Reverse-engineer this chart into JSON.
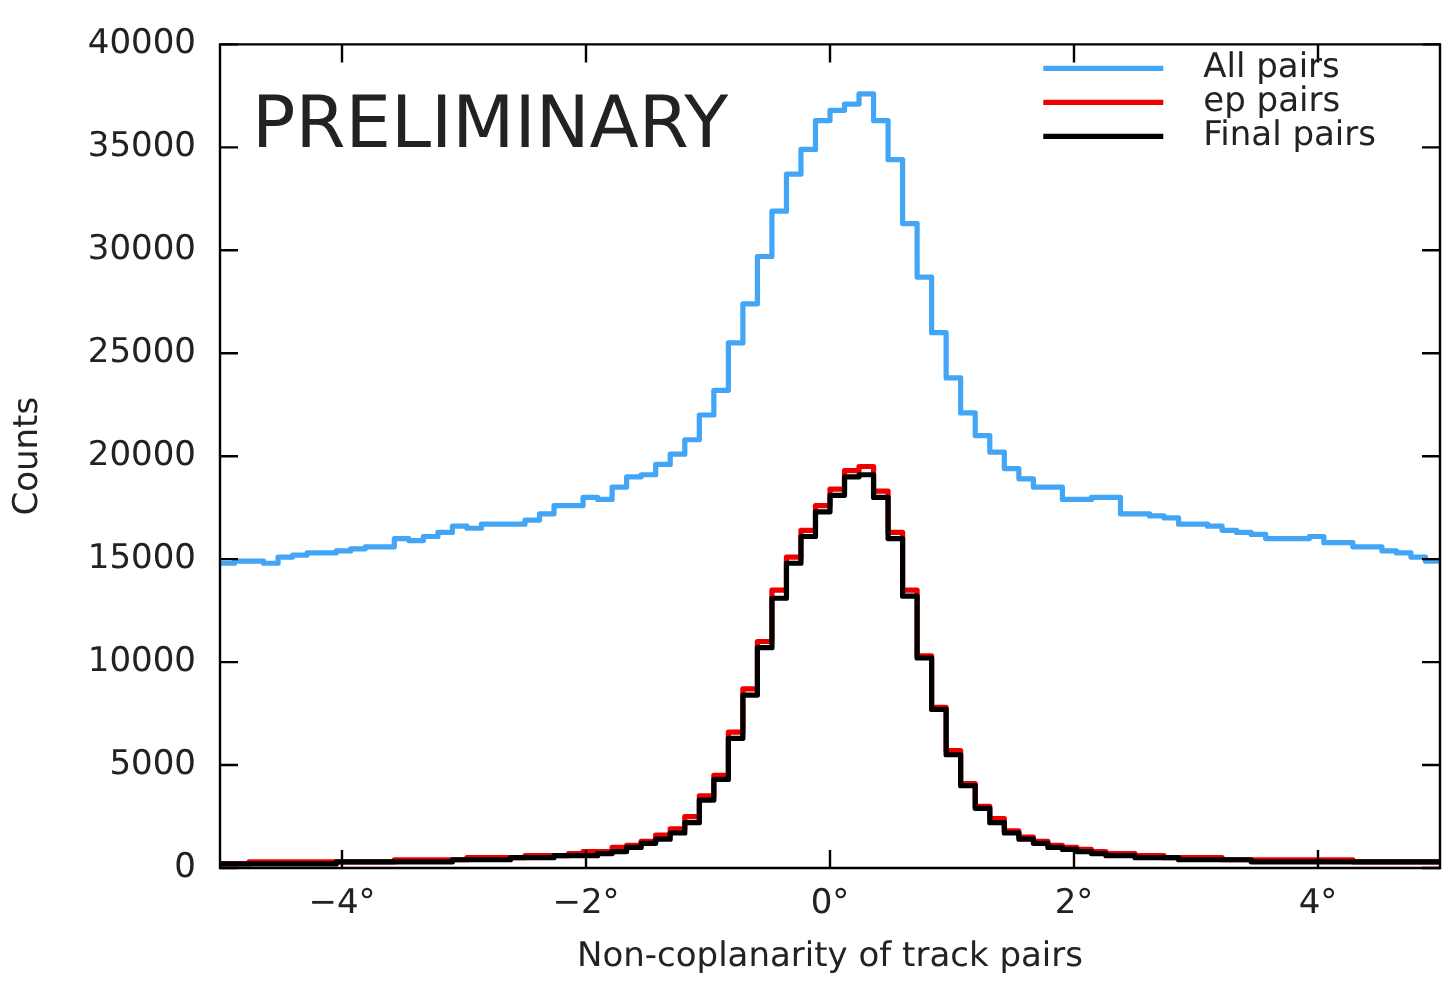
{
  "chart_data": {
    "type": "histogram",
    "xlabel": "Non-coplanarity of track pairs",
    "ylabel": "Counts",
    "annotations": [
      "PRELIMINARY"
    ],
    "bins": [
      -5,
      -4.881,
      -4.762,
      -4.643,
      -4.524,
      -4.405,
      -4.286,
      -4.167,
      -4.048,
      -3.929,
      -3.81,
      -3.69,
      -3.571,
      -3.452,
      -3.333,
      -3.214,
      -3.095,
      -2.976,
      -2.857,
      -2.738,
      -2.619,
      -2.5,
      -2.381,
      -2.262,
      -2.143,
      -2.024,
      -1.905,
      -1.786,
      -1.667,
      -1.548,
      -1.429,
      -1.31,
      -1.19,
      -1.071,
      -0.952,
      -0.833,
      -0.714,
      -0.595,
      -0.476,
      -0.357,
      -0.238,
      -0.119,
      0,
      0.119,
      0.238,
      0.357,
      0.476,
      0.595,
      0.714,
      0.833,
      0.952,
      1.071,
      1.19,
      1.31,
      1.429,
      1.548,
      1.667,
      1.786,
      1.905,
      2.024,
      2.143,
      2.262,
      2.381,
      2.5,
      2.619,
      2.738,
      2.857,
      2.976,
      3.095,
      3.214,
      3.333,
      3.452,
      3.571,
      3.69,
      3.81,
      3.929,
      4.048,
      4.167,
      4.286,
      4.405,
      4.524,
      4.643,
      4.762,
      4.881,
      5
    ],
    "series": [
      {
        "name": "All pairs",
        "color": "#42a5f5",
        "values": [
          14800,
          14900,
          14900,
          14800,
          15100,
          15200,
          15300,
          15300,
          15400,
          15500,
          15600,
          15600,
          16000,
          15900,
          16100,
          16300,
          16600,
          16500,
          16700,
          16700,
          16700,
          16900,
          17200,
          17600,
          17600,
          18000,
          17900,
          18500,
          19000,
          19100,
          19600,
          20100,
          20800,
          22000,
          23200,
          25500,
          27400,
          29700,
          31900,
          33700,
          34900,
          36300,
          36800,
          37100,
          37600,
          36300,
          34400,
          31300,
          28700,
          26000,
          23800,
          22100,
          21000,
          20200,
          19400,
          18900,
          18500,
          18500,
          17900,
          17900,
          18000,
          18000,
          17200,
          17200,
          17100,
          17000,
          16700,
          16700,
          16600,
          16400,
          16300,
          16200,
          16000,
          16000,
          16000,
          16100,
          15800,
          15800,
          15600,
          15600,
          15400,
          15300,
          15100,
          14900
        ]
      },
      {
        "name": "ep pairs",
        "color": "#ee0000",
        "values": [
          200,
          200,
          300,
          300,
          300,
          300,
          300,
          300,
          300,
          300,
          300,
          300,
          400,
          400,
          400,
          400,
          400,
          500,
          500,
          500,
          500,
          600,
          600,
          600,
          700,
          800,
          800,
          1000,
          1100,
          1300,
          1600,
          1900,
          2500,
          3500,
          4500,
          6600,
          8700,
          11000,
          13500,
          15100,
          16400,
          17600,
          18400,
          19300,
          19500,
          18300,
          16300,
          13500,
          10300,
          7800,
          5700,
          4100,
          3000,
          2400,
          1800,
          1500,
          1300,
          1100,
          1000,
          900,
          800,
          700,
          700,
          600,
          600,
          500,
          500,
          500,
          500,
          400,
          400,
          400,
          400,
          400,
          400,
          400,
          400,
          400,
          300,
          300,
          300,
          300,
          300,
          300
        ]
      },
      {
        "name": "Final pairs",
        "color": "#000000",
        "values": [
          200,
          200,
          200,
          200,
          200,
          200,
          200,
          200,
          300,
          300,
          300,
          300,
          300,
          300,
          300,
          300,
          400,
          400,
          400,
          400,
          500,
          500,
          500,
          600,
          600,
          600,
          700,
          800,
          1000,
          1200,
          1400,
          1700,
          2200,
          3300,
          4300,
          6300,
          8400,
          10700,
          13100,
          14800,
          16100,
          17300,
          18100,
          19000,
          19100,
          18000,
          16000,
          13200,
          10200,
          7700,
          5500,
          4000,
          2900,
          2200,
          1700,
          1400,
          1200,
          1000,
          900,
          800,
          700,
          600,
          600,
          500,
          500,
          500,
          400,
          400,
          400,
          400,
          400,
          300,
          300,
          300,
          300,
          300,
          300,
          300,
          300,
          300,
          300,
          300,
          300,
          300
        ]
      }
    ],
    "xlim": [
      -5,
      5
    ],
    "xticks": [
      {
        "value": -4,
        "label": "−4°"
      },
      {
        "value": -2,
        "label": "−2°"
      },
      {
        "value": 0,
        "label": "0°"
      },
      {
        "value": 2,
        "label": "2°"
      },
      {
        "value": 4,
        "label": "4°"
      }
    ],
    "ylim": [
      0,
      40000
    ],
    "yticks": [
      0,
      5000,
      10000,
      15000,
      20000,
      25000,
      30000,
      35000,
      40000
    ],
    "legend": "top right"
  }
}
